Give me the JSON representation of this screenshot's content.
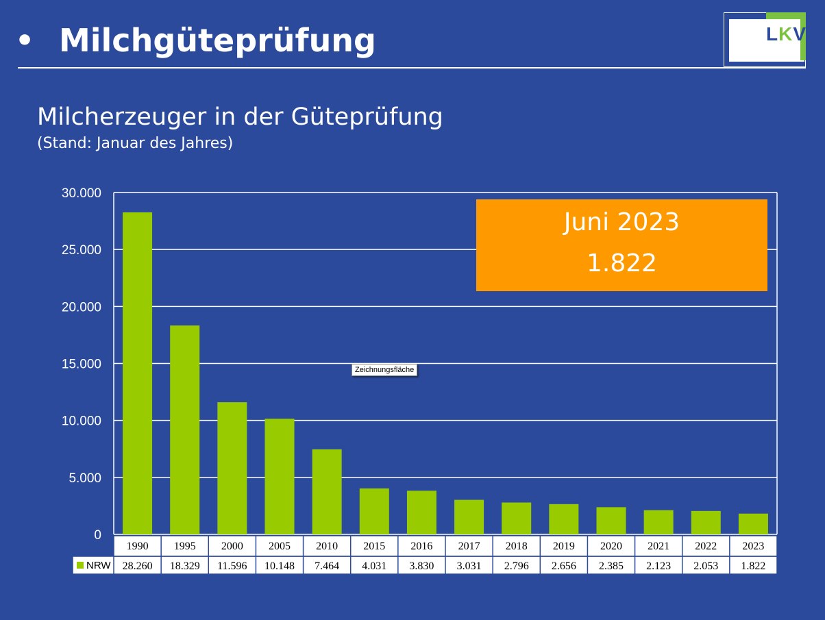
{
  "header": {
    "bullet": "•",
    "title": "Milchgüteprüfung"
  },
  "logo": {
    "text_l": "L",
    "text_k": "K",
    "text_v": "V"
  },
  "chart_heading": {
    "title": "Milcherzeuger in der Güteprüfung",
    "note": "(Stand: Januar des Jahres)"
  },
  "callout": {
    "line1": "Juni 2023",
    "line2": "1.822"
  },
  "tooltip": {
    "text": "Zeichnungsfläche"
  },
  "colors": {
    "background": "#2b4a9b",
    "bar": "#99cc00",
    "callout": "#ff9900",
    "grid": "#ffffff"
  },
  "chart_data": {
    "type": "bar",
    "categories": [
      "1990",
      "1995",
      "2000",
      "2005",
      "2010",
      "2015",
      "2016",
      "2017",
      "2018",
      "2019",
      "2020",
      "2021",
      "2022",
      "2023"
    ],
    "series": [
      {
        "name": "NRW",
        "values": [
          28260,
          18329,
          11596,
          10148,
          7464,
          4031,
          3830,
          3031,
          2796,
          2656,
          2385,
          2123,
          2053,
          1822
        ],
        "labels": [
          "28.260",
          "18.329",
          "11.596",
          "10.148",
          "7.464",
          "4.031",
          "3.830",
          "3.031",
          "2.796",
          "2.656",
          "2.385",
          "2.123",
          "2.053",
          "1.822"
        ]
      }
    ],
    "ylim": [
      0,
      30000
    ],
    "yticks": [
      0,
      5000,
      10000,
      15000,
      20000,
      25000,
      30000
    ],
    "ytick_labels": [
      "0",
      "5.000",
      "10.000",
      "15.000",
      "20.000",
      "25.000",
      "30.000"
    ],
    "grid": true,
    "data_table": true,
    "legend": "in data table"
  }
}
